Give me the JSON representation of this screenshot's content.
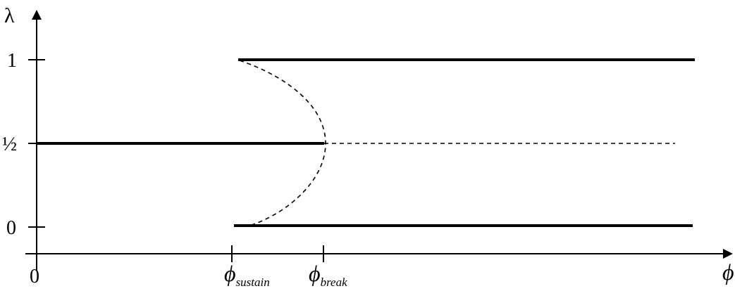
{
  "axes": {
    "y_label": "λ",
    "x_label": "ϕ",
    "y_ticks": [
      "1",
      "½",
      "0"
    ],
    "x_origin_label": "0",
    "x_ticks": [
      {
        "symbol": "ϕ",
        "subscript": "sustain"
      },
      {
        "symbol": "ϕ",
        "subscript": "break"
      }
    ]
  },
  "curves": {
    "upper_branch": "solid",
    "lower_branch": "solid",
    "middle_branch_left": "solid",
    "middle_branch_right": "dashed",
    "unstable_fold": "dashed"
  },
  "colors": {
    "ink": "#000000",
    "background": "#ffffff"
  }
}
